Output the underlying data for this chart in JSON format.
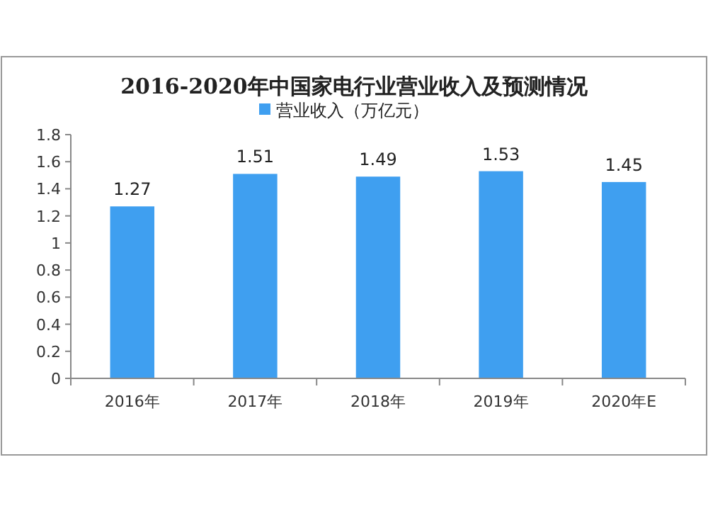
{
  "chart_data": {
    "type": "bar",
    "title": "2016-2020年中国家电行业营业收入及预测情况",
    "categories": [
      "2016年",
      "2017年",
      "2018年",
      "2019年",
      "2020年E"
    ],
    "series": [
      {
        "name": "营业收入（万亿元）",
        "color": "#3f9ff0",
        "values": [
          1.27,
          1.51,
          1.49,
          1.53,
          1.45
        ]
      }
    ],
    "ylim": [
      0,
      1.8
    ],
    "yticks": [
      0,
      0.2,
      0.4,
      0.6,
      0.8,
      1,
      1.2,
      1.4,
      1.6,
      1.8
    ],
    "data_labels": true,
    "legend": "top",
    "grid": false
  }
}
